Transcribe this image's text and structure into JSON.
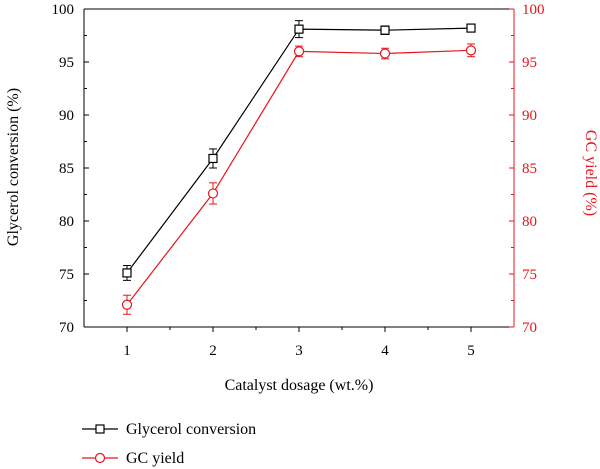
{
  "chart_data": {
    "type": "line",
    "title": "",
    "xlabel": "Catalyst dosage (wt.%)",
    "ylabel_left": "Glycerol conversion (%)",
    "ylabel_right": "GC yield (%)",
    "x": [
      1,
      2,
      3,
      4,
      5
    ],
    "xlim": [
      0.5,
      5.5
    ],
    "x_ticks": [
      "1",
      "2",
      "3",
      "4",
      "5"
    ],
    "ylim_left": [
      70,
      100
    ],
    "ylim_right": [
      70,
      100
    ],
    "y_ticks": [
      "70",
      "75",
      "80",
      "85",
      "90",
      "95",
      "100"
    ],
    "grid": false,
    "legend_position": "bottom-left",
    "series": [
      {
        "name": "Glycerol conversion",
        "axis": "left",
        "color": "#000000",
        "marker": "square",
        "values": [
          75.1,
          85.9,
          98.1,
          98.0,
          98.2
        ],
        "errors": [
          0.7,
          0.9,
          0.8,
          0.4,
          0.3
        ]
      },
      {
        "name": "GC yield",
        "axis": "right",
        "color": "#e8141c",
        "marker": "circle",
        "values": [
          72.1,
          82.6,
          96.0,
          95.8,
          96.1
        ],
        "errors": [
          0.9,
          1.0,
          0.5,
          0.5,
          0.6
        ]
      }
    ]
  }
}
